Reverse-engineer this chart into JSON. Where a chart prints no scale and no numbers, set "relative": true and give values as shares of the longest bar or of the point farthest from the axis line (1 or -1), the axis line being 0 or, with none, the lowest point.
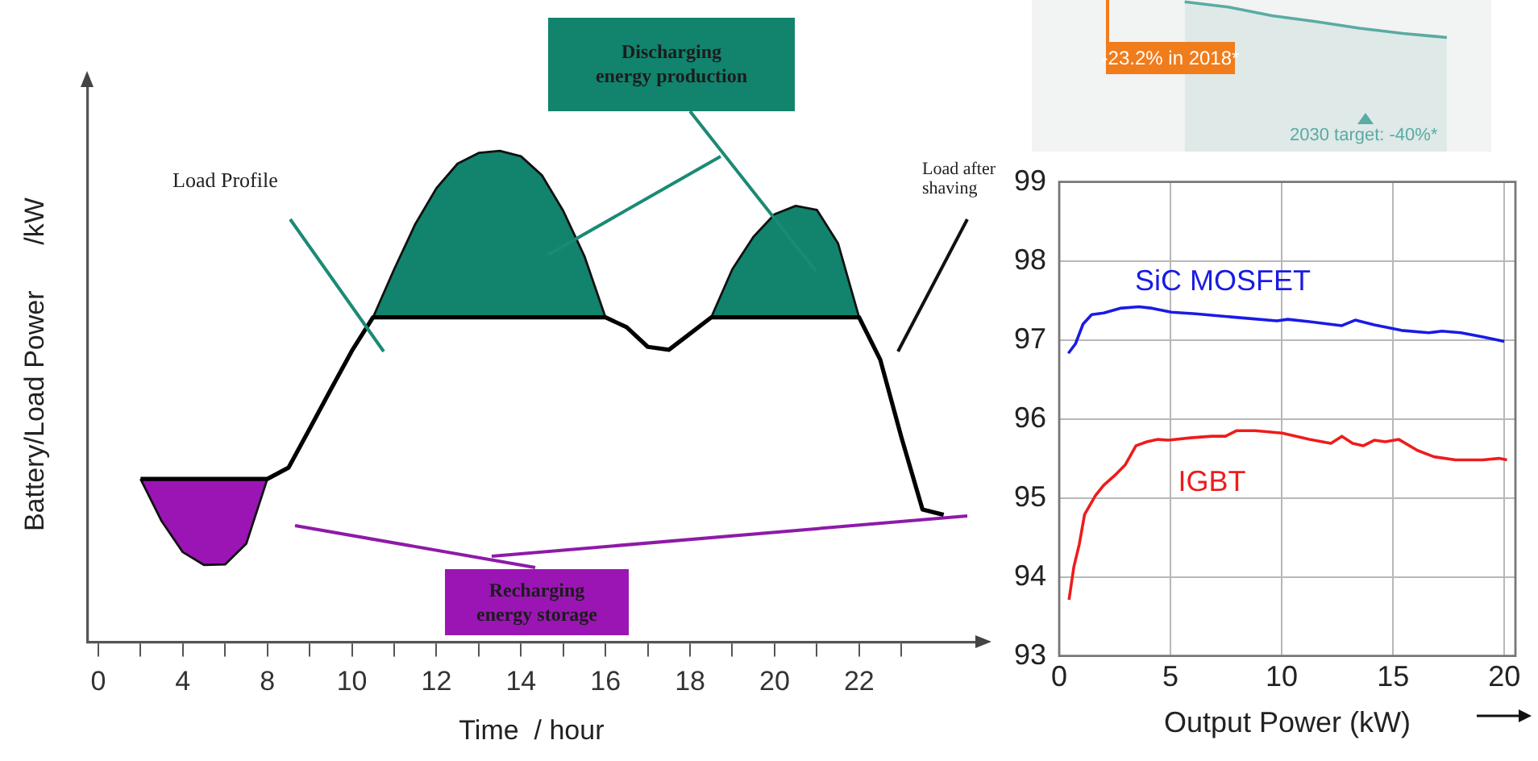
{
  "chart_data": [
    {
      "type": "area",
      "xlabel": "Time  / hour",
      "ylabel": "Battery/Load Power      /kW",
      "relative": true,
      "categories": [
        "0",
        null,
        null,
        null,
        "4",
        null,
        null,
        null,
        "8",
        null,
        null,
        null,
        "10",
        null,
        null,
        null,
        "12",
        null,
        null,
        null,
        "14",
        null,
        null,
        null,
        "16",
        null,
        null,
        null,
        "18",
        null,
        null,
        null,
        "20",
        null,
        null,
        null,
        "22",
        null,
        null,
        null,
        null,
        null
      ],
      "series": [
        {
          "type": "line",
          "color": "#000000",
          "values": [
            null,
            null,
            0.332,
            0.332,
            0.332,
            0.332,
            0.332,
            0.332,
            0.332,
            0.355,
            0.434,
            0.514,
            0.593,
            0.661,
            0.661,
            0.661,
            0.661,
            0.661,
            0.661,
            0.661,
            0.661,
            0.661,
            0.661,
            0.661,
            0.661,
            0.641,
            0.601,
            0.595,
            0.628,
            0.661,
            0.661,
            0.661,
            0.661,
            0.661,
            0.661,
            0.661,
            0.661,
            0.575,
            0.417,
            0.27,
            0.259,
            null
          ]
        },
        {
          "type": "area",
          "color": "#12836d",
          "values": [
            null,
            null,
            null,
            null,
            null,
            null,
            null,
            null,
            null,
            null,
            null,
            null,
            null,
            0.661,
            0.759,
            0.851,
            0.924,
            0.974,
            0.996,
            1,
            0.989,
            0.95,
            0.878,
            0.786,
            0.661,
            null,
            null,
            null,
            null,
            0.661,
            0.759,
            0.825,
            0.871,
            0.888,
            0.88,
            0.812,
            0.661,
            null,
            null,
            null,
            null,
            null
          ]
        },
        {
          "type": "area",
          "color": "#9b15b5",
          "values": [
            null,
            null,
            0.332,
            0.246,
            0.183,
            0.157,
            0.158,
            0.2,
            0.332,
            null,
            null,
            null,
            null,
            null,
            null,
            null,
            null,
            null,
            null,
            null,
            null,
            null,
            null,
            null,
            null,
            null,
            null,
            null,
            null,
            null,
            null,
            null,
            null,
            null,
            null,
            null,
            null,
            null,
            null,
            null,
            null,
            null
          ]
        }
      ],
      "annotations": [
        "Load Profile",
        "Load after shaving",
        "Discharging energy production",
        "Recharging energy storage"
      ]
    },
    {
      "type": "area",
      "relative": true,
      "tick_labels": false,
      "categories": [
        null,
        null,
        null,
        null,
        null,
        null,
        null,
        null,
        null,
        null
      ],
      "series": [
        {
          "color": "#5aaba3",
          "values": [
            null,
            null,
            null,
            1,
            0.852,
            0.611,
            0.444,
            0.259,
            0.111,
            0
          ]
        }
      ],
      "annotations": [
        "-23.2% in 2018*",
        "2030 target: -40%*"
      ]
    },
    {
      "type": "line",
      "xlabel": "Output Power (kW)",
      "xlim": [
        0,
        20.5
      ],
      "ylim": [
        93,
        99
      ],
      "xticks": [
        0,
        5,
        10,
        15,
        20
      ],
      "yticks": [
        93,
        94,
        95,
        96,
        97,
        98,
        99
      ],
      "grid": true,
      "series": [
        {
          "name": "SiC MOSFET",
          "color": "#1a1ae6",
          "x": [
            0.41,
            0.73,
            1.07,
            1.46,
            2.0,
            2.73,
            3.58,
            4.18,
            5.04,
            6.13,
            7.35,
            8.56,
            9.78,
            10.27,
            11.24,
            12.7,
            13.3,
            14.16,
            15.38,
            16.6,
            17.2,
            18.05,
            19.0,
            20.0
          ],
          "values": [
            96.83,
            96.95,
            97.2,
            97.32,
            97.34,
            97.4,
            97.42,
            97.4,
            97.35,
            97.33,
            97.3,
            97.27,
            97.24,
            97.26,
            97.23,
            97.18,
            97.25,
            97.19,
            97.12,
            97.09,
            97.11,
            97.09,
            97.04,
            96.98
          ]
        },
        {
          "name": "IGBT",
          "color": "#ee1c1c",
          "x": [
            0.44,
            0.66,
            0.9,
            1.14,
            1.63,
            2.0,
            2.48,
            2.97,
            3.45,
            3.94,
            4.43,
            4.91,
            5.89,
            6.86,
            7.47,
            7.96,
            8.81,
            10.02,
            11.24,
            12.21,
            12.7,
            13.19,
            13.67,
            14.16,
            14.65,
            15.26,
            16.1,
            16.84,
            17.81,
            19.03,
            19.76,
            20.12
          ],
          "values": [
            93.71,
            94.13,
            94.41,
            94.79,
            95.03,
            95.16,
            95.28,
            95.42,
            95.66,
            95.71,
            95.74,
            95.73,
            95.76,
            95.78,
            95.78,
            95.85,
            95.85,
            95.82,
            95.74,
            95.69,
            95.78,
            95.69,
            95.66,
            95.73,
            95.71,
            95.74,
            95.6,
            95.52,
            95.48,
            95.48,
            95.5,
            95.48
          ]
        }
      ]
    }
  ]
}
